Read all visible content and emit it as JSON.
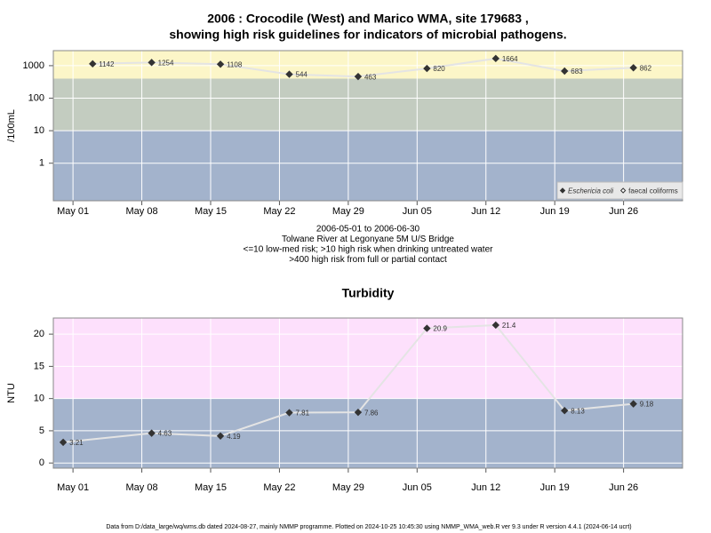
{
  "chart_data": [
    {
      "type": "line",
      "title": [
        "2006 : Crocodile (West) and Marico WMA, site 179683 ,",
        "showing high risk guidelines for indicators of microbial pathogens."
      ],
      "notes": [
        "2006-05-01 to 2006-06-30",
        "Tolwane River at Legonyane 5M U/S Bridge",
        "<=10 low-med risk; >10 high risk when drinking untreated water",
        ">400 high risk from full or partial contact"
      ],
      "y_label": "/100mL",
      "x": [
        "2006-05-03",
        "2006-05-09",
        "2006-05-16",
        "2006-05-23",
        "2006-05-30",
        "2006-06-06",
        "2006-06-13",
        "2006-06-20",
        "2006-06-27"
      ],
      "series": [
        {
          "name": "Eschericia coli",
          "color": "#333333",
          "marker": "filled",
          "values": [
            1142,
            1254,
            1108,
            544,
            463,
            820,
            1664,
            683,
            862
          ]
        },
        {
          "name": "faecal coliforms",
          "color": "#333333",
          "marker": "open",
          "values": [
            null,
            null,
            null,
            null,
            null,
            null,
            null,
            null,
            null
          ]
        }
      ],
      "line_color": "#e4e4e4",
      "log_y": true,
      "xlim": [
        "2006-04-29",
        "2006-07-02"
      ],
      "xticks": [
        {
          "value": "2006-05-01",
          "label": "May 01"
        },
        {
          "value": "2006-05-08",
          "label": "May 08"
        },
        {
          "value": "2006-05-15",
          "label": "May 15"
        },
        {
          "value": "2006-05-22",
          "label": "May 22"
        },
        {
          "value": "2006-05-29",
          "label": "May 29"
        },
        {
          "value": "2006-06-05",
          "label": "Jun 05"
        },
        {
          "value": "2006-06-12",
          "label": "Jun 12"
        },
        {
          "value": "2006-06-19",
          "label": "Jun 19"
        },
        {
          "value": "2006-06-26",
          "label": "Jun 26"
        }
      ],
      "ylim": [
        0.07,
        2900
      ],
      "yticks": [
        1,
        10,
        100,
        1000
      ],
      "thresholds": [
        10,
        400
      ],
      "band_colors": [
        "#a3b3cc",
        "#c3ccc0",
        "#fcf6c8"
      ],
      "grid": true,
      "legend": "bottom-right"
    },
    {
      "type": "line",
      "title": "Turbidity",
      "y_label": "NTU",
      "x": [
        "2006-04-30",
        "2006-05-09",
        "2006-05-16",
        "2006-05-23",
        "2006-05-30",
        "2006-06-06",
        "2006-06-13",
        "2006-06-20",
        "2006-06-27"
      ],
      "series": [
        {
          "name": "Turbidity",
          "color": "#333333",
          "marker": "filled",
          "values": [
            3.21,
            4.63,
            4.19,
            7.81,
            7.86,
            20.9,
            21.4,
            8.13,
            9.18
          ]
        }
      ],
      "line_color": "#e4e4e4",
      "log_y": false,
      "xlim": [
        "2006-04-29",
        "2006-07-02"
      ],
      "xticks": [
        {
          "value": "2006-05-01",
          "label": "May 01"
        },
        {
          "value": "2006-05-08",
          "label": "May 08"
        },
        {
          "value": "2006-05-15",
          "label": "May 15"
        },
        {
          "value": "2006-05-22",
          "label": "May 22"
        },
        {
          "value": "2006-05-29",
          "label": "May 29"
        },
        {
          "value": "2006-06-05",
          "label": "Jun 05"
        },
        {
          "value": "2006-06-12",
          "label": "Jun 12"
        },
        {
          "value": "2006-06-19",
          "label": "Jun 19"
        },
        {
          "value": "2006-06-26",
          "label": "Jun 26"
        }
      ],
      "ylim": [
        -0.8,
        22.5
      ],
      "yticks": [
        0,
        5,
        10,
        15,
        20
      ],
      "thresholds": [
        10
      ],
      "band_colors": [
        "#a3b3cc",
        "#fde0fc"
      ],
      "grid": true
    }
  ],
  "footer": "Data from D:/data_large/wq/wms.db dated 2024-08-27, mainly NMMP programme. Plotted on 2024-10-25 10:45:30 using NMMP_WMA_web.R ver 9.3 under R version 4.4.1 (2024-06-14 ucrt)"
}
